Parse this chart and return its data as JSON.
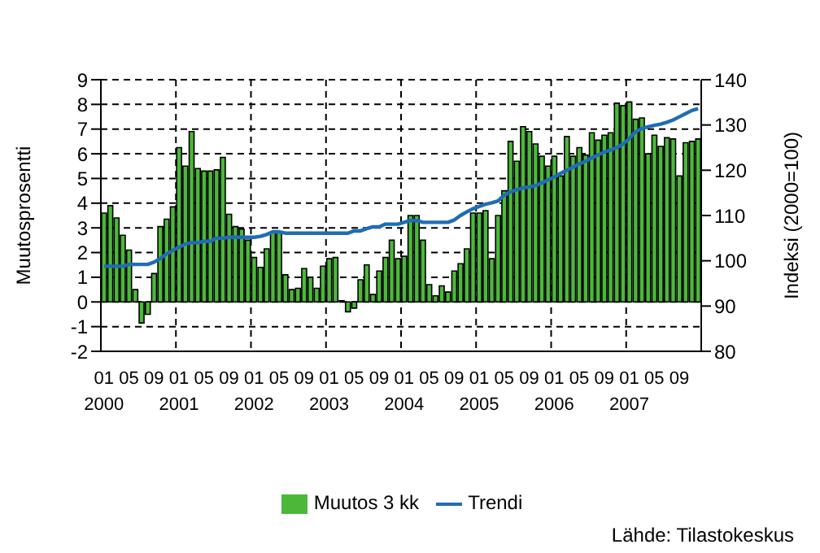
{
  "chart_data": {
    "type": "bar",
    "ylabel": "Muutosprosentti",
    "y2label": "Indeksi (2000=100)",
    "categories": [
      "01\n2000",
      null,
      null,
      null,
      "05",
      null,
      null,
      null,
      "09",
      null,
      null,
      null,
      "01\n2001",
      null,
      null,
      null,
      "05",
      null,
      null,
      null,
      "09",
      null,
      null,
      null,
      "01\n2002",
      null,
      null,
      null,
      "05",
      null,
      null,
      null,
      "09",
      null,
      null,
      null,
      "01\n2003",
      null,
      null,
      null,
      "05",
      null,
      null,
      null,
      "09",
      null,
      null,
      null,
      "01\n2004",
      null,
      null,
      null,
      "05",
      null,
      null,
      null,
      "09",
      null,
      null,
      null,
      "01\n2005",
      null,
      null,
      null,
      "05",
      null,
      null,
      null,
      "09",
      null,
      null,
      null,
      "01\n2006",
      null,
      null,
      null,
      "05",
      null,
      null,
      null,
      "09",
      null,
      null,
      null,
      "01\n2007",
      null,
      null,
      null,
      "05",
      null,
      null,
      null,
      "09",
      null,
      null,
      null
    ],
    "series": [
      {
        "name": "Muutos 3 kk",
        "color": "#4cb83a",
        "values": [
          3.6,
          3.9,
          3.4,
          2.7,
          2.1,
          0.5,
          -0.85,
          -0.5,
          1.15,
          3.05,
          3.35,
          3.85,
          6.25,
          5.5,
          6.9,
          5.4,
          5.3,
          5.3,
          5.35,
          5.85,
          3.55,
          3.05,
          2.95,
          2.5,
          1.8,
          1.4,
          2.15,
          2.8,
          2.8,
          1.1,
          0.5,
          0.55,
          1.35,
          1.0,
          0.55,
          1.45,
          1.75,
          1.8,
          0.05,
          -0.4,
          -0.25,
          0.9,
          1.5,
          0.3,
          1.25,
          1.8,
          2.5,
          1.75,
          1.85,
          3.5,
          3.5,
          2.5,
          0.7,
          0.25,
          0.65,
          0.4,
          1.25,
          1.55,
          2.15,
          3.6,
          3.6,
          3.7,
          1.75,
          3.5,
          4.5,
          6.5,
          5.7,
          7.1,
          6.9,
          6.4,
          5.9,
          5.5,
          5.9,
          5.1,
          6.7,
          5.9,
          6.25,
          5.95,
          6.85,
          6.55,
          6.75,
          6.85,
          8.05,
          7.95,
          8.1,
          7.4,
          7.45,
          6.0,
          6.75,
          6.3,
          6.65,
          6.6,
          5.1,
          6.45,
          6.5,
          6.6
        ]
      },
      {
        "name": "Trendi",
        "type": "line",
        "axis": "y2",
        "color": "#1f6db5",
        "values": [
          98.8,
          98.8,
          98.8,
          98.8,
          99.2,
          99.2,
          99.2,
          99.2,
          99.7,
          100.5,
          101.5,
          102.3,
          103,
          103.7,
          104,
          104,
          104.3,
          104.3,
          105,
          105,
          105.2,
          105.2,
          105.2,
          105.2,
          105.2,
          105.4,
          105.8,
          106.4,
          106.4,
          106.1,
          106.1,
          106.1,
          106.1,
          106.1,
          106.1,
          106.1,
          106.1,
          106.1,
          106.1,
          106.1,
          106.6,
          106.6,
          107.1,
          107.5,
          107.5,
          108.1,
          108.1,
          108.1,
          108.5,
          108.9,
          108.9,
          108.5,
          108.5,
          108.5,
          108.5,
          108.5,
          109,
          110,
          110.8,
          111.5,
          112,
          112.5,
          112.8,
          113.2,
          114.5,
          115.2,
          115.7,
          116.1,
          116.3,
          116.6,
          117.2,
          117.9,
          118.5,
          119.3,
          120,
          120.7,
          121.4,
          122,
          122.7,
          123.4,
          124,
          124.5,
          125,
          125.8,
          127,
          128.5,
          129.2,
          129.6,
          129.9,
          130.2,
          130.6,
          131.1,
          131.8,
          132.5,
          133.2,
          133.6
        ]
      }
    ],
    "ylim": [
      -2,
      9
    ],
    "yticks": [
      -2,
      -1,
      0,
      1,
      2,
      3,
      4,
      5,
      6,
      7,
      8,
      9
    ],
    "y2lim": [
      80,
      140
    ],
    "y2ticks": [
      80,
      90,
      100,
      110,
      120,
      130,
      140
    ],
    "grid": true,
    "legend": "bottom",
    "line_style": "solid",
    "annotations": [
      "Lähde: Tilastokeskus"
    ]
  }
}
